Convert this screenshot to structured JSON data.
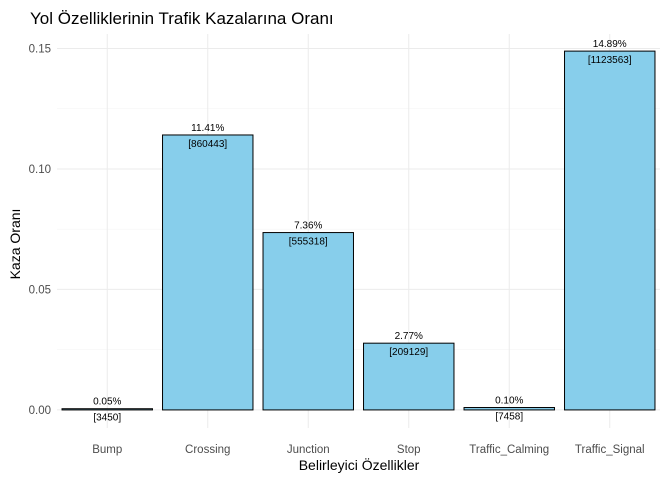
{
  "chart_data": {
    "type": "bar",
    "title": "Yol Özelliklerinin Trafik Kazalarına Oranı",
    "xlabel": "Belirleyici Özellikler",
    "ylabel": "Kaza Oranı",
    "categories": [
      "Bump",
      "Crossing",
      "Junction",
      "Stop",
      "Traffic_Calming",
      "Traffic_Signal"
    ],
    "values": [
      0.0005,
      0.1141,
      0.0736,
      0.0277,
      0.001,
      0.1489
    ],
    "percent_labels": [
      "0.05%",
      "11.41%",
      "7.36%",
      "2.77%",
      "0.10%",
      "14.89%"
    ],
    "count_labels": [
      "[3450]",
      "[860443]",
      "[555318]",
      "[209129]",
      "[7458]",
      "[1123563]"
    ],
    "y_ticks": [
      0,
      0.05,
      0.1,
      0.15
    ],
    "y_tick_labels": [
      "0.00",
      "0.05",
      "0.10",
      "0.15"
    ],
    "ylim": [
      -0.0075,
      0.156
    ],
    "grid": true,
    "legend": "none",
    "bar_fill": "#87ceeb",
    "bar_outline": "#000000"
  }
}
